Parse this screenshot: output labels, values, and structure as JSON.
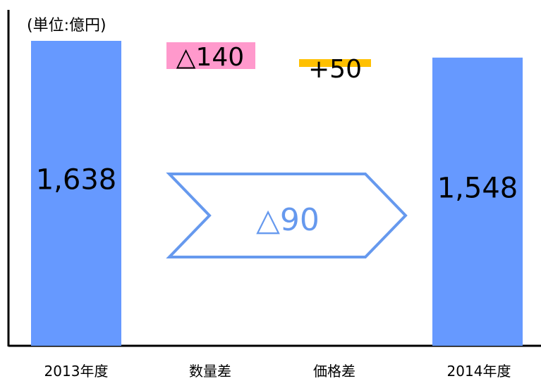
{
  "chart_data": {
    "type": "bar",
    "unit_label": "(単位:億円)",
    "categories": [
      "2013年度",
      "数量差",
      "価格差",
      "2014年度"
    ],
    "values": [
      1638,
      -140,
      50,
      1548
    ],
    "data_labels": [
      "1,638",
      "△140",
      "+50",
      "1,548"
    ],
    "bridge": {
      "label": "△90",
      "value": -90
    },
    "ylim": [
      0,
      1800
    ],
    "grid": false,
    "legend": "none",
    "colors": {
      "total_bar": "#6699ff",
      "decrease_highlight": "#ff99cc",
      "increase_highlight": "#ffc000",
      "bridge_arrow": "#6699ee",
      "axis": "#000000"
    }
  }
}
